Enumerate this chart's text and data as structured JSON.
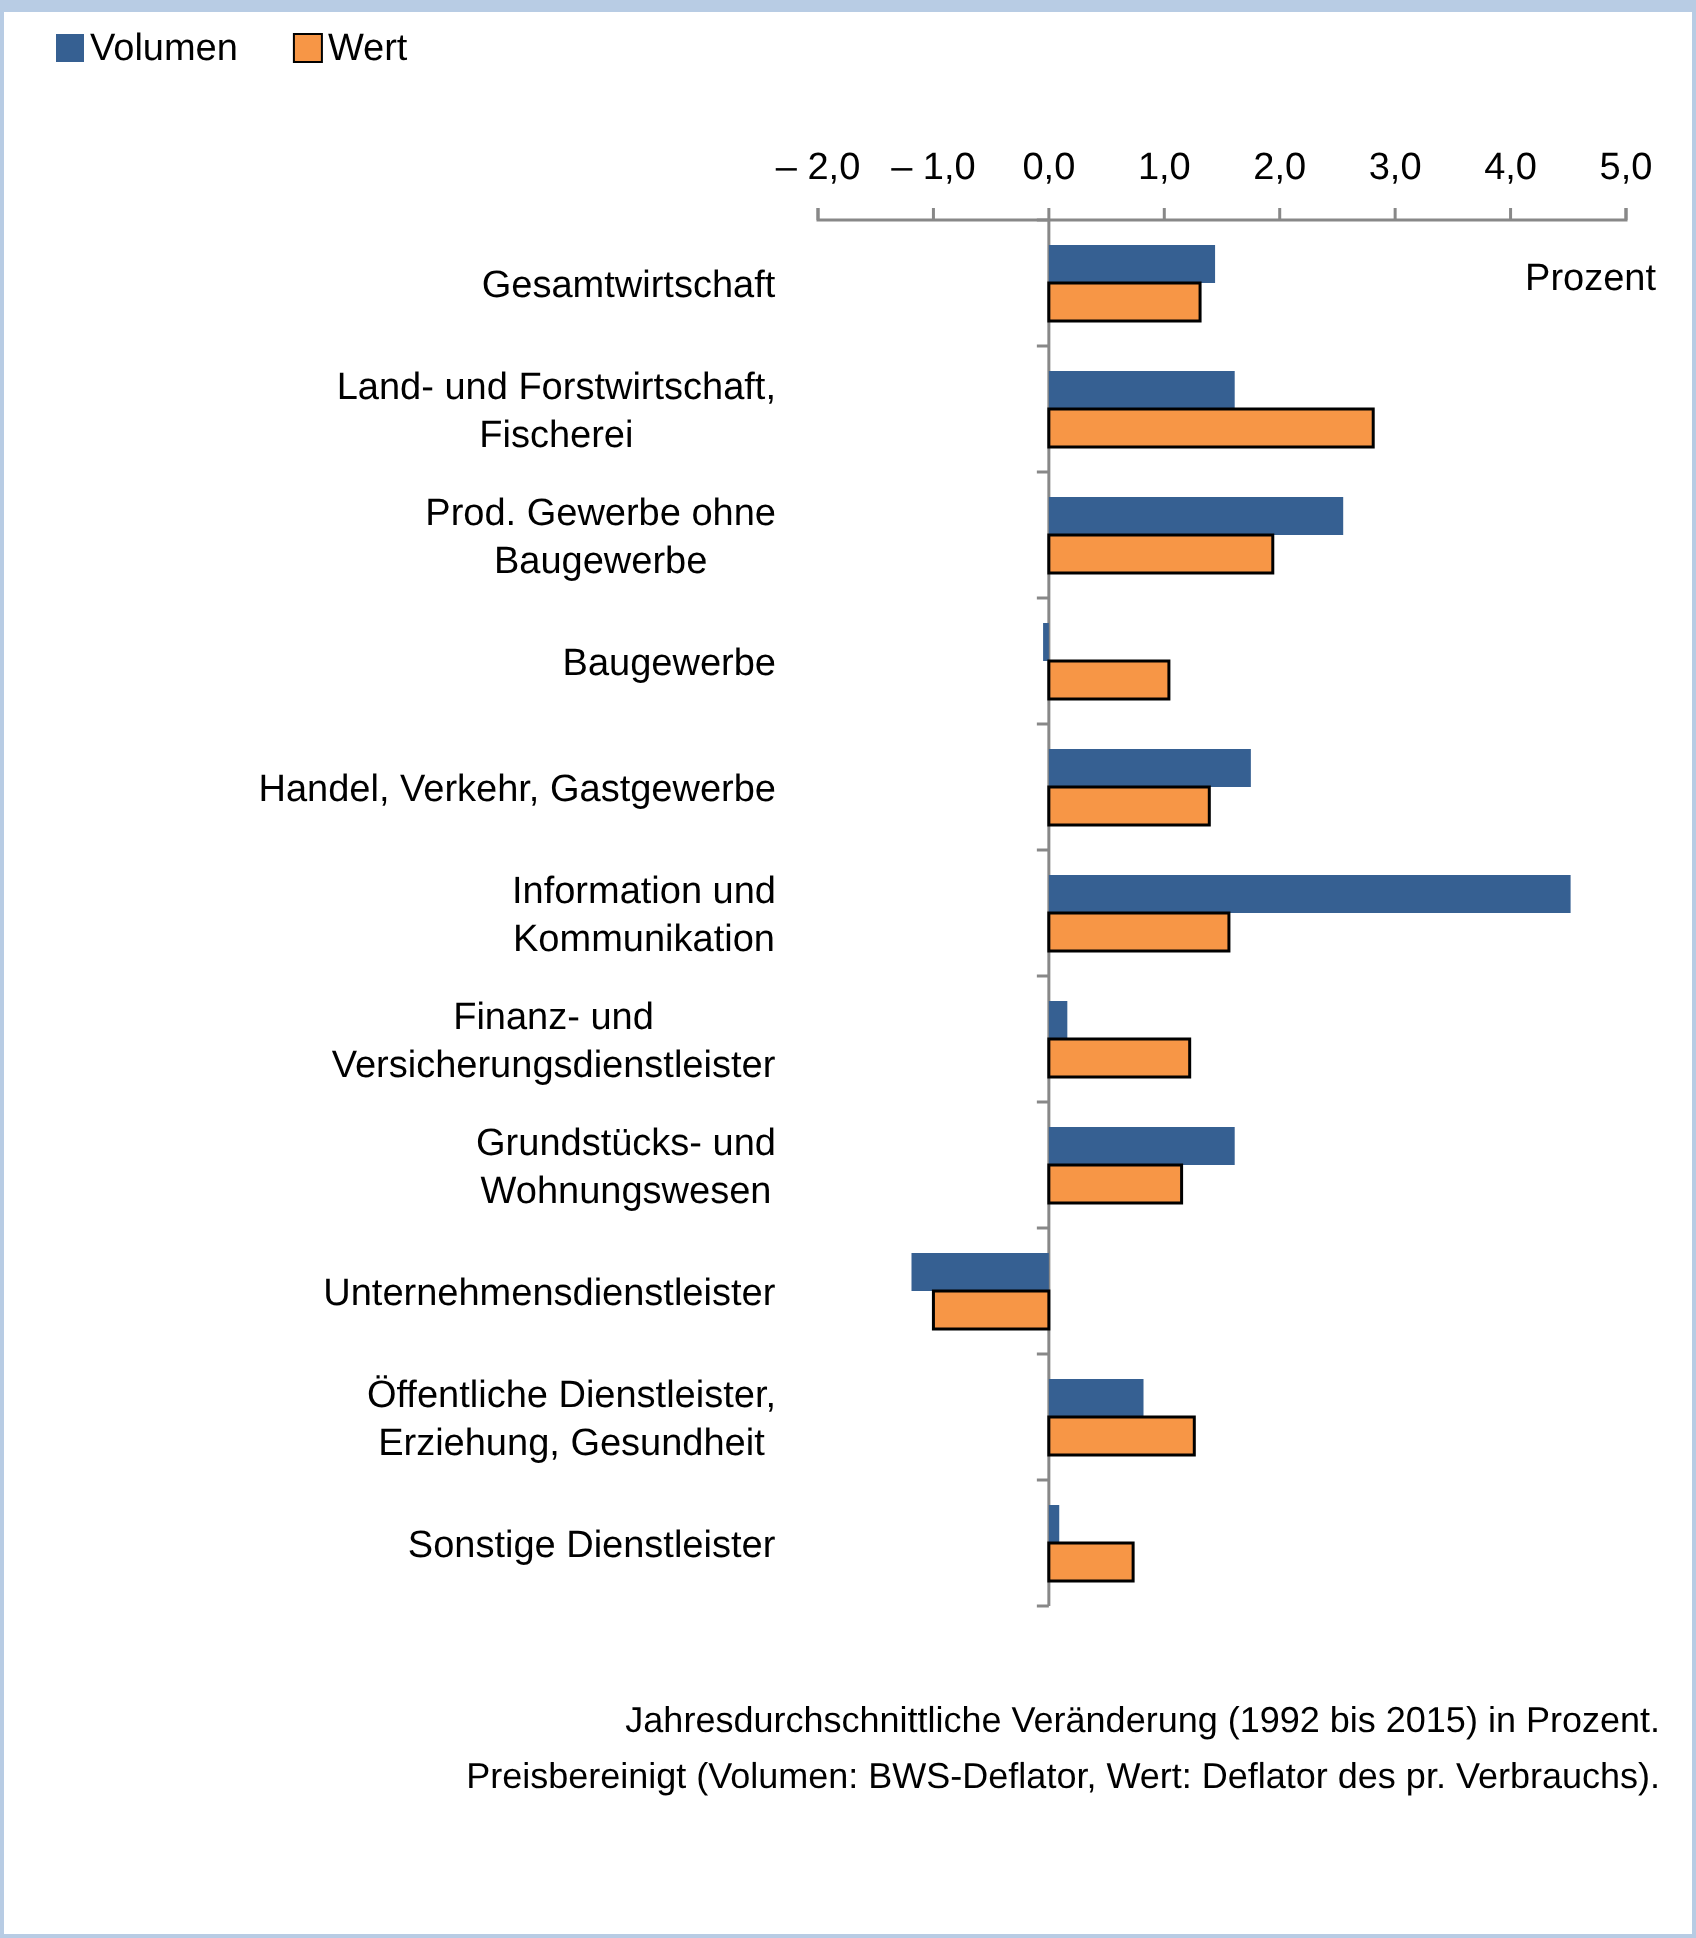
{
  "chart_data": {
    "type": "bar",
    "orientation": "horizontal",
    "xlabel": "Prozent",
    "categories": [
      "Gesamtwirtschaft",
      "Land- und Forstwirtschaft,\nFischerei",
      "Prod. Gewerbe ohne\nBaugewerbe",
      "Baugewerbe",
      "Handel, Verkehr, Gastgewerbe",
      "Information und\nKommunikation",
      "Finanz- und\nVersicherungsdienstleister",
      "Grundstücks- und\nWohnungswesen",
      "Unternehmensdienstleister",
      "Öffentliche Dienstleister,\nErziehung, Gesundheit",
      "Sonstige Dienstleister"
    ],
    "series": [
      {
        "name": "Volumen",
        "color": "#366092",
        "values": [
          1.44,
          1.61,
          2.55,
          -0.05,
          1.75,
          4.52,
          0.16,
          1.61,
          -1.19,
          0.82,
          0.09
        ]
      },
      {
        "name": "Wert",
        "color": "#f79646",
        "values": [
          1.31,
          2.81,
          1.94,
          1.04,
          1.39,
          1.56,
          1.22,
          1.15,
          -1.0,
          1.26,
          0.73
        ]
      }
    ],
    "xlim": [
      -2,
      5
    ],
    "xticks": [
      {
        "value": -2,
        "label": "– 2,0"
      },
      {
        "value": -1,
        "label": "– 1,0"
      },
      {
        "value": 0,
        "label": "0,0"
      },
      {
        "value": 1,
        "label": "1,0"
      },
      {
        "value": 2,
        "label": "2,0"
      },
      {
        "value": 3,
        "label": "3,0"
      },
      {
        "value": 4,
        "label": "4,0"
      },
      {
        "value": 5,
        "label": "5,0"
      }
    ],
    "legend": "top left",
    "annotations": [
      "Jahresdurchschnittliche Veränderung (1992 bis 2015) in Prozent.",
      "Preisbereinigt (Volumen: BWS-Deflator, Wert: Deflator des pr. Verbrauchs)."
    ]
  }
}
